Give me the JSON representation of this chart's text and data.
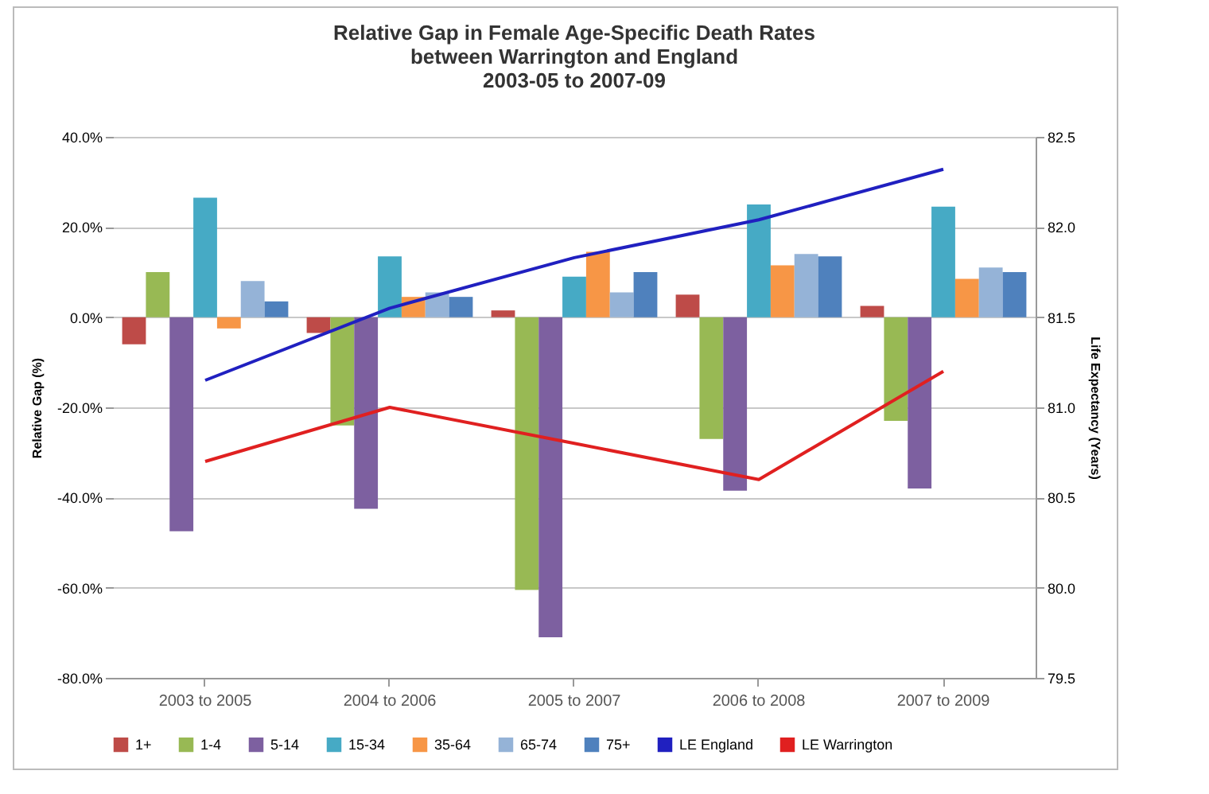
{
  "chart_data": {
    "type": "bar",
    "title": "Relative Gap in Female Age-Specific Death Rates\nbetween Warrington and England\n2003-05 to 2007-09",
    "ylabel": "Relative Gap (%)",
    "y2label": "Life Expectancy (Years)",
    "categories": [
      "2003 to 2005",
      "2004 to 2006",
      "2005 to 2007",
      "2006 to 2008",
      "2007 to 2009"
    ],
    "series": [
      {
        "name": "1+",
        "color": "#be4b48",
        "values": [
          -6,
          -3.5,
          1.5,
          5,
          2.5
        ]
      },
      {
        "name": "1-4",
        "color": "#98b954",
        "values": [
          10,
          -24,
          -60.5,
          -27,
          -23
        ]
      },
      {
        "name": "5-14",
        "color": "#7d60a0",
        "values": [
          -47.5,
          -42.5,
          -71,
          -38.5,
          -38
        ]
      },
      {
        "name": "15-34",
        "color": "#46aac5",
        "values": [
          26.5,
          13.5,
          9,
          25,
          24.5
        ]
      },
      {
        "name": "35-64",
        "color": "#f79646",
        "values": [
          -2.5,
          4.5,
          14.5,
          11.5,
          8.5
        ]
      },
      {
        "name": "65-74",
        "color": "#95b3d7",
        "values": [
          8,
          5.5,
          5.5,
          14,
          11
        ]
      },
      {
        "name": "75+",
        "color": "#4f81bd",
        "values": [
          3.5,
          4.5,
          10,
          13.5,
          10
        ]
      },
      {
        "name": "LE England",
        "type": "line",
        "axis": "y2",
        "color": "#2020c0",
        "values": [
          81.15,
          81.55,
          81.83,
          82.04,
          82.32
        ]
      },
      {
        "name": "LE Warrington",
        "type": "line",
        "axis": "y2",
        "color": "#e02020",
        "values": [
          80.7,
          81.0,
          80.8,
          80.6,
          81.2
        ]
      }
    ],
    "ylim": [
      -80,
      40
    ],
    "yticks": [
      {
        "value": -80,
        "label": "-80.0%"
      },
      {
        "value": -60,
        "label": "-60.0%"
      },
      {
        "value": -40,
        "label": "-40.0%"
      },
      {
        "value": -20,
        "label": "-20.0%"
      },
      {
        "value": 0,
        "label": "0.0%"
      },
      {
        "value": 20,
        "label": "20.0%"
      },
      {
        "value": 40,
        "label": "40.0%"
      }
    ],
    "y2lim": [
      79.5,
      82.5
    ],
    "y2ticks": [
      79.5,
      {
        "value": 80,
        "label": "80.0"
      },
      80.5,
      {
        "value": 81,
        "label": "81.0"
      },
      81.5,
      {
        "value": 82,
        "label": "82.0"
      },
      82.5
    ],
    "grid": "y",
    "legend": "bottom",
    "marker": "none"
  }
}
